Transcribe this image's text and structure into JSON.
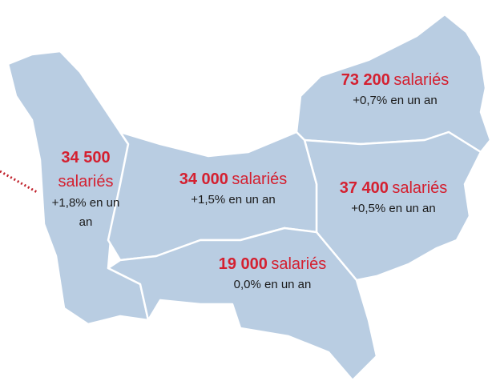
{
  "regions": [
    {
      "value": "73 200",
      "unit": "salariés",
      "change": "+0,7% en un an"
    },
    {
      "value": "34 500",
      "unit": "salariés",
      "change": "+1,8% en un an"
    },
    {
      "value": "34 000",
      "unit": "salariés",
      "change": "+1,5% en un an"
    },
    {
      "value": "37 400",
      "unit": "salariés",
      "change": "+0,5% en un an"
    },
    {
      "value": "19 000",
      "unit": "salariés",
      "change": "0,0% en un an"
    }
  ]
}
